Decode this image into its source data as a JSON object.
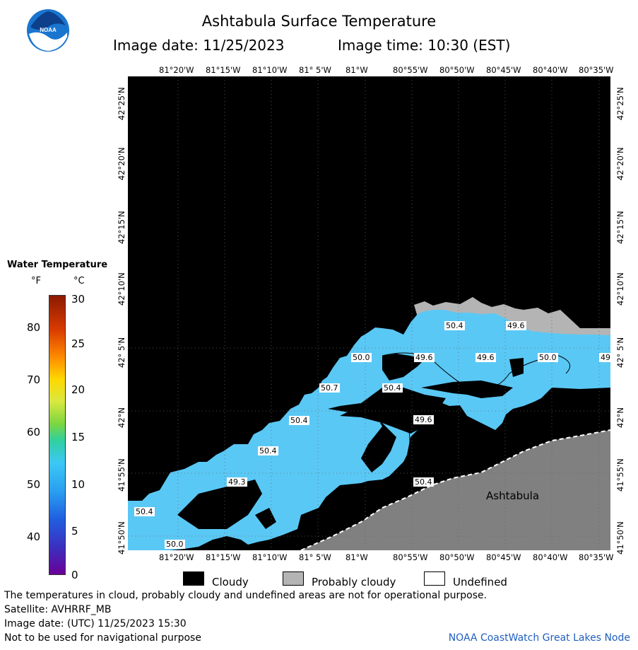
{
  "header": {
    "title": "Ashtabula Surface Temperature",
    "image_date": "Image date: 11/25/2023",
    "image_time": "Image time: 10:30 (EST)"
  },
  "logo": {
    "text": "NOAA"
  },
  "map": {
    "lon_labels": [
      "81°20'W",
      "81°15'W",
      "81°10'W",
      "81° 5'W",
      "81°W",
      "80°55'W",
      "80°50'W",
      "80°45'W",
      "80°40'W",
      "80°35'W"
    ],
    "lat_labels": [
      "42°25'N",
      "42°20'N",
      "42°15'N",
      "42°10'N",
      "42° 5'N",
      "42°N",
      "41°55'N",
      "41°50'N"
    ],
    "place_label": "Ashtabula",
    "temp_labels": [
      "50.4",
      "49.6",
      "50.0",
      "49.6",
      "49.6",
      "50.0",
      "49",
      "50.7",
      "50.4",
      "49.6",
      "50.4",
      "50.4",
      "49.3",
      "50.4",
      "50.4",
      "50.0"
    ],
    "colors": {
      "land": "#808080",
      "cloud": "#000000",
      "prob_cloud": "#b4b4b4",
      "water": "#5ac8f5"
    }
  },
  "legend": {
    "title": "Water Temperature",
    "unit_f": "°F",
    "unit_c": "°C",
    "f_values": [
      "80",
      "70",
      "60",
      "50",
      "40"
    ],
    "c_values": [
      "30",
      "25",
      "20",
      "15",
      "10",
      "5",
      "0"
    ]
  },
  "key": {
    "cloudy": "Cloudy",
    "prob_cloudy": "Probably cloudy",
    "undefined": "Undefined"
  },
  "footer": {
    "line1": "The temperatures in cloud, probably cloudy and undefined areas are not for operational purpose.",
    "line2": "Satellite: AVHRRF_MB",
    "line3": "Image date: (UTC) 11/25/2023  15:30",
    "line4": "Not to be used for navigational purpose",
    "credit": "NOAA CoastWatch Great Lakes Node"
  }
}
